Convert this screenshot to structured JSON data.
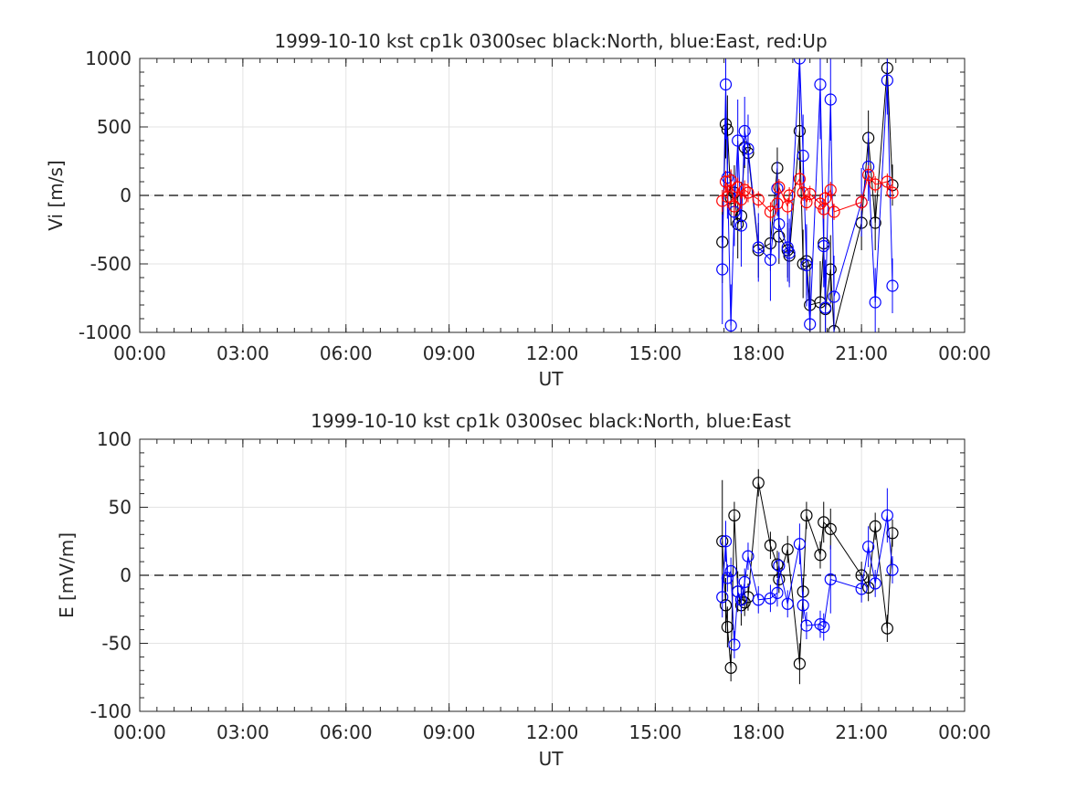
{
  "chart_data": [
    {
      "type": "line",
      "title": "1999-10-10 kst cp1k 0300sec black:North, blue:East, red:Up",
      "xlabel": "UT",
      "ylabel": "Vi [m/s]",
      "xlim": [
        0,
        24
      ],
      "ylim": [
        -1000,
        1000
      ],
      "grid": true,
      "x_tick_labels": [
        "00:00",
        "03:00",
        "06:00",
        "09:00",
        "12:00",
        "15:00",
        "18:00",
        "21:00",
        "00:00"
      ],
      "y_tick_labels": [
        "-1000",
        "-500",
        "0",
        "500",
        "1000"
      ],
      "y_ticks": [
        -1000,
        -500,
        0,
        500,
        1000
      ],
      "zero_line": "dashed",
      "series": [
        {
          "color": "#000000",
          "marker": "circle",
          "x": [
            16.95,
            17.05,
            17.1,
            17.2,
            17.3,
            17.4,
            17.5,
            17.6,
            17.7,
            18.0,
            18.35,
            18.55,
            18.6,
            18.85,
            18.9,
            19.2,
            19.3,
            19.4,
            19.5,
            19.8,
            19.9,
            19.95,
            20.1,
            20.2,
            21.0,
            21.2,
            21.4,
            21.75,
            21.9
          ],
          "y": [
            -340,
            520,
            480,
            -20,
            20,
            -210,
            -150,
            350,
            310,
            -400,
            -350,
            200,
            -300,
            -400,
            -440,
            470,
            -500,
            -480,
            -800,
            -780,
            -350,
            -830,
            -540,
            -990,
            -200,
            420,
            -200,
            930,
            75
          ],
          "err": [
            300,
            250,
            250,
            200,
            200,
            250,
            250,
            150,
            150,
            200,
            200,
            150,
            200,
            200,
            200,
            300,
            250,
            250,
            300,
            300,
            250,
            300,
            250,
            250,
            200,
            200,
            200,
            200,
            150
          ]
        },
        {
          "color": "#0000ff",
          "marker": "circle",
          "x": [
            16.95,
            17.05,
            17.1,
            17.2,
            17.3,
            17.4,
            17.5,
            17.6,
            17.7,
            18.0,
            18.35,
            18.55,
            18.6,
            18.85,
            18.9,
            19.2,
            19.3,
            19.4,
            19.5,
            19.8,
            19.9,
            19.95,
            20.1,
            20.2,
            21.0,
            21.2,
            21.4,
            21.75,
            21.9
          ],
          "y": [
            -540,
            810,
            130,
            -950,
            -120,
            400,
            -220,
            470,
            340,
            -380,
            -470,
            50,
            -210,
            -380,
            -420,
            1000,
            290,
            -510,
            -940,
            810,
            -370,
            -820,
            700,
            -740,
            -50,
            210,
            -780,
            840,
            -660
          ],
          "err": [
            400,
            400,
            300,
            300,
            250,
            300,
            300,
            250,
            250,
            250,
            300,
            200,
            250,
            250,
            250,
            400,
            300,
            300,
            350,
            400,
            300,
            350,
            300,
            300,
            250,
            250,
            250,
            250,
            200
          ]
        },
        {
          "color": "#ff0000",
          "marker": "circle",
          "x": [
            16.95,
            17.05,
            17.1,
            17.2,
            17.3,
            17.4,
            17.5,
            17.6,
            17.7,
            18.0,
            18.35,
            18.55,
            18.6,
            18.85,
            18.9,
            19.2,
            19.3,
            19.4,
            19.5,
            19.8,
            19.9,
            19.95,
            20.1,
            20.2,
            21.0,
            21.2,
            21.4,
            21.75,
            21.9
          ],
          "y": [
            -40,
            100,
            -10,
            110,
            -80,
            60,
            -30,
            40,
            20,
            -30,
            -120,
            -60,
            60,
            -80,
            0,
            120,
            20,
            -50,
            10,
            -60,
            -100,
            -20,
            40,
            -120,
            -50,
            150,
            80,
            100,
            20
          ],
          "err": [
            80,
            80,
            80,
            80,
            70,
            70,
            70,
            70,
            70,
            60,
            70,
            60,
            60,
            60,
            60,
            70,
            60,
            60,
            60,
            70,
            70,
            60,
            60,
            60,
            60,
            70,
            60,
            60,
            50
          ]
        }
      ]
    },
    {
      "type": "line",
      "title": "1999-10-10 kst cp1k 0300sec black:North, blue:East",
      "xlabel": "UT",
      "ylabel": "E [mV/m]",
      "xlim": [
        0,
        24
      ],
      "ylim": [
        -100,
        100
      ],
      "grid": true,
      "x_tick_labels": [
        "00:00",
        "03:00",
        "06:00",
        "09:00",
        "12:00",
        "15:00",
        "18:00",
        "21:00",
        "00:00"
      ],
      "y_tick_labels": [
        "-100",
        "-50",
        "0",
        "50",
        "100"
      ],
      "y_ticks": [
        -100,
        -50,
        0,
        50,
        100
      ],
      "zero_line": "dashed",
      "series": [
        {
          "color": "#000000",
          "marker": "circle",
          "x": [
            16.95,
            17.05,
            17.1,
            17.2,
            17.3,
            17.4,
            17.5,
            17.6,
            17.7,
            18.0,
            18.35,
            18.55,
            18.6,
            18.85,
            19.2,
            19.3,
            19.4,
            19.8,
            19.9,
            20.1,
            21.0,
            21.2,
            21.4,
            21.75,
            21.9
          ],
          "y": [
            25,
            -22,
            -38,
            -68,
            44,
            -12,
            -22,
            -20,
            -16,
            68,
            22,
            8,
            -3,
            19,
            -65,
            -12,
            44,
            15,
            39,
            34,
            0,
            -9,
            36,
            -39,
            31
          ],
          "err": [
            45,
            20,
            15,
            10,
            10,
            15,
            15,
            10,
            10,
            10,
            10,
            10,
            10,
            10,
            15,
            10,
            10,
            10,
            15,
            15,
            10,
            10,
            10,
            10,
            10
          ]
        },
        {
          "color": "#0000ff",
          "marker": "circle",
          "x": [
            16.95,
            17.05,
            17.1,
            17.2,
            17.3,
            17.4,
            17.5,
            17.6,
            17.7,
            18.0,
            18.35,
            18.55,
            18.6,
            18.85,
            19.2,
            19.3,
            19.4,
            19.8,
            19.9,
            20.1,
            21.0,
            21.2,
            21.4,
            21.75,
            21.9
          ],
          "y": [
            -16,
            25,
            -2,
            3,
            -51,
            -12,
            -18,
            -5,
            14,
            -18,
            -17,
            -13,
            7,
            -21,
            23,
            -22,
            -37,
            -36,
            -38,
            -3,
            -10,
            21,
            -6,
            44,
            4
          ],
          "err": [
            15,
            15,
            10,
            10,
            10,
            10,
            10,
            10,
            10,
            10,
            10,
            10,
            10,
            10,
            15,
            10,
            10,
            10,
            10,
            25,
            10,
            15,
            10,
            20,
            10
          ]
        }
      ]
    }
  ]
}
